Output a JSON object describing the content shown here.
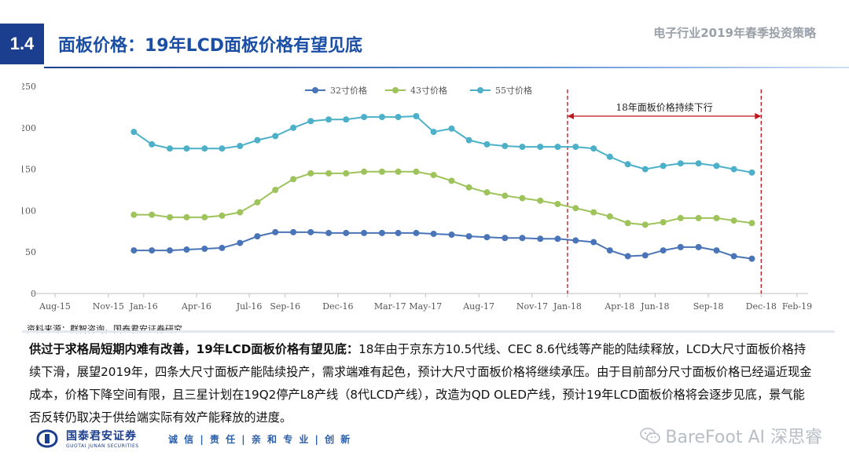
{
  "header": {
    "section_number": "1.4",
    "title": "面板价格：19年LCD面板价格有望见底",
    "report_name": "电子行业2019年春季投资策略"
  },
  "chart_data": {
    "type": "line",
    "x_ticks": [
      "Aug-15",
      "Nov-15",
      "Jan-16",
      "Apr-16",
      "Jul-16",
      "Sep-16",
      "Dec-16",
      "Mar-17",
      "May-17",
      "Aug-17",
      "Nov-17",
      "Jan-18",
      "Apr-18",
      "Jun-18",
      "Sep-18",
      "Dec-18",
      "Feb-19"
    ],
    "x_tick_dates": [
      "2015-08-01",
      "2015-11-01",
      "2016-01-01",
      "2016-04-01",
      "2016-07-01",
      "2016-09-01",
      "2016-12-01",
      "2017-03-01",
      "2017-05-01",
      "2017-08-01",
      "2017-11-01",
      "2018-01-01",
      "2018-04-01",
      "2018-06-01",
      "2018-09-01",
      "2018-12-01",
      "2019-02-01"
    ],
    "x": [
      "2015-12",
      "2016-01",
      "2016-02",
      "2016-03",
      "2016-04",
      "2016-05",
      "2016-06",
      "2016-07",
      "2016-08",
      "2016-09",
      "2016-10",
      "2016-11",
      "2016-12",
      "2017-01",
      "2017-02",
      "2017-03",
      "2017-04",
      "2017-05",
      "2017-06",
      "2017-07",
      "2017-08",
      "2017-09",
      "2017-10",
      "2017-11",
      "2017-12",
      "2018-01",
      "2018-02",
      "2018-03",
      "2018-04",
      "2018-05",
      "2018-06",
      "2018-07",
      "2018-08",
      "2018-09",
      "2018-10",
      "2018-11"
    ],
    "ylim": [
      0,
      250
    ],
    "y_ticks": [
      0,
      50,
      100,
      150,
      200,
      250
    ],
    "series": [
      {
        "name": "32寸价格",
        "color": "#4a74b8",
        "values": [
          52,
          52,
          52,
          53,
          54,
          55,
          61,
          69,
          74,
          74,
          74,
          73,
          73,
          73,
          73,
          73,
          73,
          72,
          71,
          69,
          68,
          67,
          67,
          66,
          66,
          64,
          62,
          52,
          45,
          46,
          52,
          56,
          56,
          52,
          45,
          42
        ]
      },
      {
        "name": "43寸价格",
        "color": "#9dc35a",
        "values": [
          95,
          95,
          92,
          92,
          92,
          94,
          98,
          110,
          125,
          138,
          145,
          145,
          145,
          147,
          147,
          147,
          147,
          143,
          136,
          128,
          122,
          118,
          115,
          112,
          108,
          103,
          98,
          93,
          85,
          83,
          86,
          91,
          91,
          91,
          88,
          85
        ]
      },
      {
        "name": "55寸价格",
        "color": "#4bb0c8",
        "values": [
          195,
          180,
          175,
          175,
          175,
          175,
          178,
          185,
          190,
          200,
          208,
          210,
          210,
          213,
          213,
          213,
          214,
          195,
          199,
          185,
          180,
          178,
          177,
          177,
          177,
          177,
          175,
          165,
          156,
          150,
          154,
          157,
          157,
          154,
          150,
          146
        ]
      }
    ],
    "annotation": {
      "text": "18年面板价格持续下行",
      "x_start": "2018-01-01",
      "x_end": "2018-12-01",
      "color": "#c0141c"
    },
    "legend_position": "top-center",
    "grid": false
  },
  "source_note": "资料来源：群智咨询，国泰君安证券研究",
  "body": {
    "lead": "供过于求格局短期内难有改善，19年LCD面板价格有望见底：",
    "text": "18年由于京东方10.5代线、CEC 8.6代线等产能的陆续释放，LCD大尺寸面板价格持续下滑，展望2019年，四条大尺寸面板产能陆续投产，需求端难有起色，预计大尺寸面板价格将继续承压。由于目前部分尺寸面板价格已经逼近现金成本，价格下降空间有限，且三星计划在19Q2停产L8产线（8代LCD产线），改造为QD OLED产线，预计19年LCD面板价格将会逐步见底，景气能否反转仍取决于供给端实际有效产能释放的进度。"
  },
  "footer": {
    "company": "国泰君安证券",
    "company_en": "GUOTAI JUNAN SECURITIES",
    "slogan": "诚 信 | 责 任 | 亲 和  专 业 | 创 新",
    "watermark": "BareFoot AI 深思睿"
  }
}
